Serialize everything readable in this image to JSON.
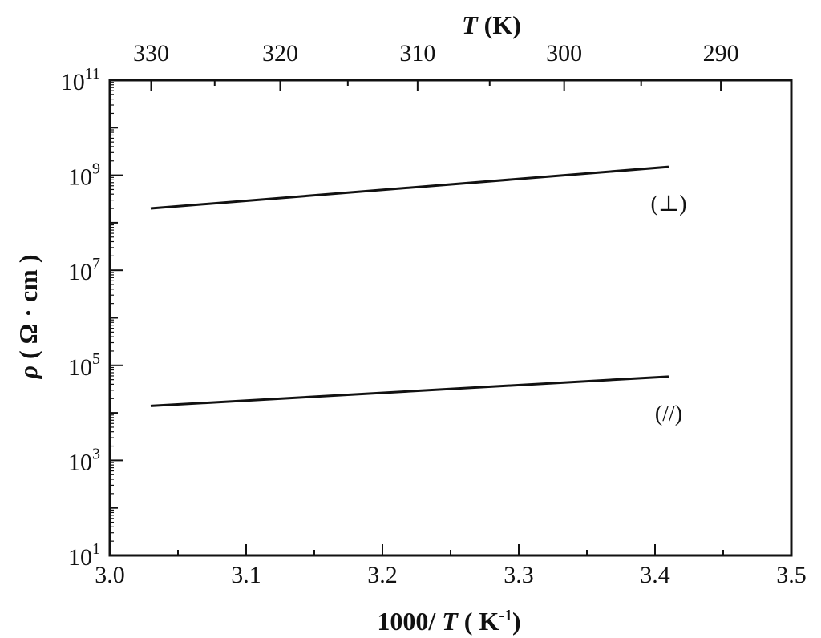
{
  "chart_data": {
    "type": "line",
    "xlabel_bottom": "1000/ T ( K-1)",
    "xlabel_top": "T (K)",
    "ylabel": "ρ ( Ω · cm )",
    "yscale": "log",
    "xlim": [
      3.0,
      3.5
    ],
    "ylim": [
      10,
      100000000000
    ],
    "x_ticks": [
      "3.0",
      "3.1",
      "3.2",
      "3.3",
      "3.4",
      "3.5"
    ],
    "top_ticks_K": [
      330,
      320,
      310,
      300,
      290
    ],
    "y_ticks_exponents": [
      1,
      3,
      5,
      7,
      9,
      11
    ],
    "grid": false,
    "series": [
      {
        "name": "(⊥)",
        "x": [
          3.03,
          3.41
        ],
        "y": [
          200000000,
          1500000000
        ]
      },
      {
        "name": "(//)",
        "x": [
          3.03,
          3.41
        ],
        "y": [
          14000,
          58000
        ]
      }
    ],
    "colors": {
      "line": "#111111",
      "axis": "#111111",
      "background": "#ffffff"
    }
  }
}
